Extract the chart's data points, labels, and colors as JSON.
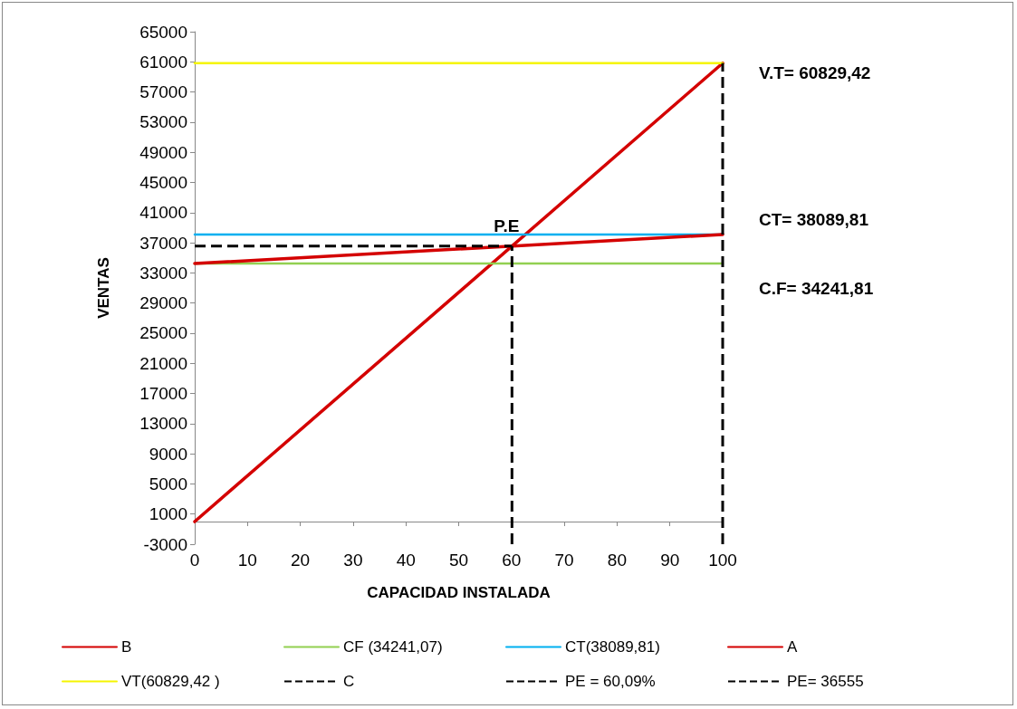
{
  "chart_data": {
    "type": "line",
    "xlabel": "CAPACIDAD INSTALADA",
    "ylabel": "VENTAS",
    "xlim": [
      0,
      100
    ],
    "xticks": [
      0,
      10,
      20,
      30,
      40,
      50,
      60,
      70,
      80,
      90,
      100
    ],
    "ylim": [
      -3000,
      65000
    ],
    "yticks": [
      -3000,
      1000,
      5000,
      9000,
      13000,
      17000,
      21000,
      25000,
      29000,
      33000,
      37000,
      41000,
      45000,
      49000,
      53000,
      57000,
      61000,
      65000
    ],
    "grid": false,
    "legend": "bottom",
    "marker": "none",
    "series": [
      {
        "name": "B",
        "color": "#d40000",
        "x": [
          0,
          100
        ],
        "values": [
          0,
          60829.42
        ],
        "line_style": "solid"
      },
      {
        "name": "CF (34241,07)",
        "color": "#92d050",
        "x": [
          0,
          100
        ],
        "values": [
          34241.07,
          34241.07
        ],
        "line_style": "solid"
      },
      {
        "name": "CT(38089,81)",
        "color": "#00b0f0",
        "x": [
          0,
          100
        ],
        "values": [
          38089.81,
          38089.81
        ],
        "line_style": "solid"
      },
      {
        "name": "A",
        "color": "#d40000",
        "x": [
          0,
          100
        ],
        "values": [
          34241.07,
          38089.81
        ],
        "line_style": "solid"
      },
      {
        "name": "VT(60829,42 )",
        "color": "#f5f500",
        "x": [
          0,
          100
        ],
        "values": [
          60829.42,
          60829.42
        ],
        "line_style": "solid"
      },
      {
        "name": "C",
        "color": "#000000",
        "x": [
          100,
          100
        ],
        "values": [
          -3000,
          60829.42
        ],
        "line_style": "dashed"
      },
      {
        "name": "PE = 60,09%",
        "color": "#000000",
        "x": [
          60.09,
          60.09
        ],
        "values": [
          -3000,
          36555
        ],
        "line_style": "dashed"
      },
      {
        "name": "PE= 36555",
        "color": "#000000",
        "x": [
          0,
          60.09
        ],
        "values": [
          36555,
          36555
        ],
        "line_style": "dashed"
      }
    ],
    "annotations": [
      "V.T= 60829,42",
      "CT= 38089,81",
      "C.F= 34241,81",
      {
        "text": "P.E",
        "x": 60.09,
        "y": 36555
      }
    ]
  }
}
